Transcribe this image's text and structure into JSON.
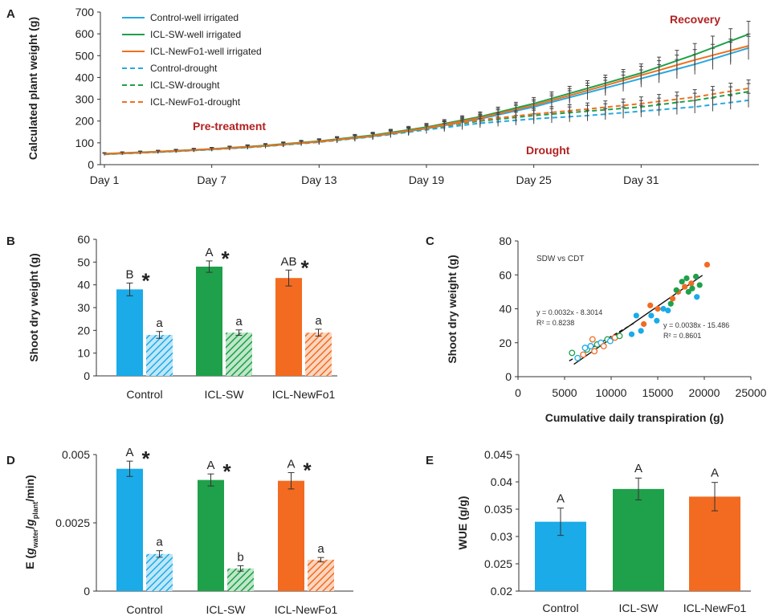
{
  "chart_data": [
    {
      "panel": "A",
      "type": "line",
      "ylabel": "Calculated plant weight (g)",
      "ylim": [
        0,
        700
      ],
      "yticks": [
        "0",
        "100",
        "200",
        "300",
        "400",
        "500",
        "600",
        "700"
      ],
      "xticks": [
        "Day 1",
        "Day 7",
        "Day 13",
        "Day 19",
        "Day 25",
        "Day 31"
      ],
      "xrange": [
        1,
        37
      ],
      "annotations": [
        "Pre-treatment",
        "Drought",
        "Recovery"
      ],
      "series": [
        {
          "name": "Control-well irrigated",
          "color": "#29a8e0",
          "dash": false,
          "x": [
            1,
            4,
            7,
            10,
            13,
            16,
            19,
            22,
            25,
            28,
            31,
            34,
            37
          ],
          "y": [
            48,
            58,
            70,
            85,
            105,
            130,
            165,
            210,
            265,
            330,
            395,
            460,
            535
          ]
        },
        {
          "name": "ICL-SW-well irrigated",
          "color": "#1fa04a",
          "dash": false,
          "x": [
            1,
            4,
            7,
            10,
            13,
            16,
            19,
            22,
            25,
            28,
            31,
            34,
            37
          ],
          "y": [
            50,
            60,
            72,
            88,
            108,
            135,
            172,
            220,
            280,
            350,
            420,
            505,
            598
          ]
        },
        {
          "name": "ICL-NewFo1-well irrigated",
          "color": "#f07020",
          "dash": false,
          "x": [
            1,
            4,
            7,
            10,
            13,
            16,
            19,
            22,
            25,
            28,
            31,
            34,
            37
          ],
          "y": [
            49,
            59,
            71,
            86,
            106,
            132,
            168,
            215,
            272,
            340,
            410,
            480,
            545
          ]
        },
        {
          "name": "Control-drought",
          "color": "#29a8e0",
          "dash": true,
          "x": [
            1,
            4,
            7,
            10,
            13,
            16,
            19,
            22,
            25,
            28,
            31,
            34,
            37
          ],
          "y": [
            47,
            57,
            69,
            84,
            103,
            128,
            160,
            190,
            210,
            225,
            245,
            265,
            295
          ]
        },
        {
          "name": "ICL-SW-drought",
          "color": "#1fa04a",
          "dash": true,
          "x": [
            1,
            4,
            7,
            10,
            13,
            16,
            19,
            22,
            25,
            28,
            31,
            34,
            37
          ],
          "y": [
            48,
            58,
            70,
            85,
            104,
            130,
            165,
            200,
            225,
            245,
            265,
            295,
            335
          ]
        },
        {
          "name": "ICL-NewFo1-drought",
          "color": "#f07020",
          "dash": true,
          "x": [
            1,
            4,
            7,
            10,
            13,
            16,
            19,
            22,
            25,
            28,
            31,
            34,
            37
          ],
          "y": [
            49,
            59,
            71,
            86,
            105,
            131,
            166,
            205,
            232,
            255,
            280,
            310,
            350
          ]
        }
      ]
    },
    {
      "panel": "B",
      "type": "bar",
      "ylabel": "Shoot dry weight (g)",
      "ylim": [
        0,
        60
      ],
      "yticks": [
        "0",
        "10",
        "20",
        "30",
        "40",
        "50",
        "60"
      ],
      "categories": [
        "Control",
        "ICL-SW",
        "ICL-NewFo1"
      ],
      "series": [
        {
          "values": [
            38,
            48,
            43
          ],
          "errors": [
            2.8,
            2.5,
            3.5
          ],
          "letters": [
            "B",
            "A",
            "AB"
          ],
          "stars": true
        },
        {
          "values": [
            18,
            19,
            19
          ],
          "errors": [
            1.5,
            1.2,
            1.5
          ],
          "letters": [
            "a",
            "a",
            "a"
          ],
          "stars": false,
          "hatched": true
        }
      ],
      "colors": [
        "#1aabe8",
        "#1fa04a",
        "#f26b21"
      ]
    },
    {
      "panel": "C",
      "type": "scatter",
      "title": "SDW vs CDT",
      "xlabel": "Cumulative daily transpiration (g)",
      "ylabel": "Shoot dry weight (g)",
      "xlim": [
        0,
        25000
      ],
      "ylim": [
        0,
        80
      ],
      "xticks": [
        "0",
        "5000",
        "10000",
        "15000",
        "20000",
        "25000"
      ],
      "yticks": [
        "0",
        "20",
        "40",
        "60",
        "80"
      ],
      "fit_labels": [
        "y = 0.0032x - 8.3014",
        "R² = 0.8238",
        "y = 0.0038x - 15.486",
        "R² = 0.8601"
      ],
      "fits": [
        {
          "slope": 0.0032,
          "intercept": -8.3014,
          "x": [
            5500,
            12500
          ],
          "dash": true
        },
        {
          "slope": 0.0038,
          "intercept": -15.486,
          "x": [
            6000,
            19800
          ],
          "dash": false
        }
      ],
      "filled_points": [
        {
          "x": 12200,
          "y": 25,
          "color": "#1aabe8"
        },
        {
          "x": 12700,
          "y": 36,
          "color": "#1aabe8"
        },
        {
          "x": 13200,
          "y": 27,
          "color": "#1aabe8"
        },
        {
          "x": 14300,
          "y": 36,
          "color": "#1aabe8"
        },
        {
          "x": 14900,
          "y": 33,
          "color": "#1aabe8"
        },
        {
          "x": 15600,
          "y": 40,
          "color": "#1aabe8"
        },
        {
          "x": 16100,
          "y": 39,
          "color": "#1aabe8"
        },
        {
          "x": 19200,
          "y": 47,
          "color": "#1aabe8"
        },
        {
          "x": 13500,
          "y": 31,
          "color": "#f26b21"
        },
        {
          "x": 14200,
          "y": 42,
          "color": "#f26b21"
        },
        {
          "x": 15000,
          "y": 40,
          "color": "#f26b21"
        },
        {
          "x": 16600,
          "y": 46,
          "color": "#f26b21"
        },
        {
          "x": 17200,
          "y": 50,
          "color": "#f26b21"
        },
        {
          "x": 17900,
          "y": 53,
          "color": "#f26b21"
        },
        {
          "x": 18600,
          "y": 55,
          "color": "#f26b21"
        },
        {
          "x": 20300,
          "y": 66,
          "color": "#f26b21"
        },
        {
          "x": 16400,
          "y": 43,
          "color": "#1fa04a"
        },
        {
          "x": 17000,
          "y": 51,
          "color": "#1fa04a"
        },
        {
          "x": 17600,
          "y": 56,
          "color": "#1fa04a"
        },
        {
          "x": 18100,
          "y": 58,
          "color": "#1fa04a"
        },
        {
          "x": 18700,
          "y": 52,
          "color": "#1fa04a"
        },
        {
          "x": 19100,
          "y": 59,
          "color": "#1fa04a"
        },
        {
          "x": 19500,
          "y": 54,
          "color": "#1fa04a"
        },
        {
          "x": 18300,
          "y": 50,
          "color": "#1fa04a"
        }
      ],
      "open_points": [
        {
          "x": 5800,
          "y": 14,
          "color": "#1fa04a"
        },
        {
          "x": 6400,
          "y": 11,
          "color": "#1aabe8"
        },
        {
          "x": 7000,
          "y": 13,
          "color": "#f26b21"
        },
        {
          "x": 7400,
          "y": 16,
          "color": "#1fa04a"
        },
        {
          "x": 7800,
          "y": 18,
          "color": "#1aabe8"
        },
        {
          "x": 8200,
          "y": 15,
          "color": "#f26b21"
        },
        {
          "x": 8500,
          "y": 19,
          "color": "#1fa04a"
        },
        {
          "x": 8900,
          "y": 20,
          "color": "#1aabe8"
        },
        {
          "x": 9200,
          "y": 18,
          "color": "#f26b21"
        },
        {
          "x": 9600,
          "y": 22,
          "color": "#1fa04a"
        },
        {
          "x": 9900,
          "y": 21,
          "color": "#1aabe8"
        },
        {
          "x": 10400,
          "y": 23,
          "color": "#f26b21"
        },
        {
          "x": 10900,
          "y": 24,
          "color": "#1fa04a"
        },
        {
          "x": 8000,
          "y": 22,
          "color": "#f26b21"
        },
        {
          "x": 7200,
          "y": 17,
          "color": "#1aabe8"
        }
      ]
    },
    {
      "panel": "D",
      "type": "bar",
      "ylabel": "E (g_water/g_plant/min)",
      "ylabel_main": "E (",
      "ylabel_sub1": "water",
      "ylabel_sub2": "plant",
      "ylabel_end": "/min)",
      "ylim": [
        0,
        0.005
      ],
      "yticks": [
        "0",
        "0.0025",
        "0.005"
      ],
      "categories": [
        "Control",
        "ICL-SW",
        "ICL-NewFo1"
      ],
      "series": [
        {
          "values": [
            0.00448,
            0.00407,
            0.00404
          ],
          "errors": [
            0.00028,
            0.00022,
            0.0003
          ],
          "letters": [
            "A",
            "A",
            "A"
          ],
          "stars": true
        },
        {
          "values": [
            0.00136,
            0.00083,
            0.00115
          ],
          "errors": [
            0.00012,
            0.0001,
            8e-05
          ],
          "letters": [
            "a",
            "b",
            "a"
          ],
          "stars": false,
          "hatched": true
        }
      ],
      "colors": [
        "#1aabe8",
        "#1fa04a",
        "#f26b21"
      ]
    },
    {
      "panel": "E",
      "type": "bar",
      "ylabel": "WUE (g/g)",
      "ylim": [
        0.02,
        0.045
      ],
      "yticks": [
        "0.02",
        "0.025",
        "0.03",
        "0.035",
        "0.04",
        "0.045"
      ],
      "categories": [
        "Control",
        "ICL-SW",
        "ICL-NewFo1"
      ],
      "values": [
        0.0327,
        0.0387,
        0.0373
      ],
      "errors": [
        0.0025,
        0.002,
        0.0026
      ],
      "letters": [
        "A",
        "A",
        "A"
      ],
      "colors": [
        "#1aabe8",
        "#1fa04a",
        "#f26b21"
      ]
    }
  ]
}
